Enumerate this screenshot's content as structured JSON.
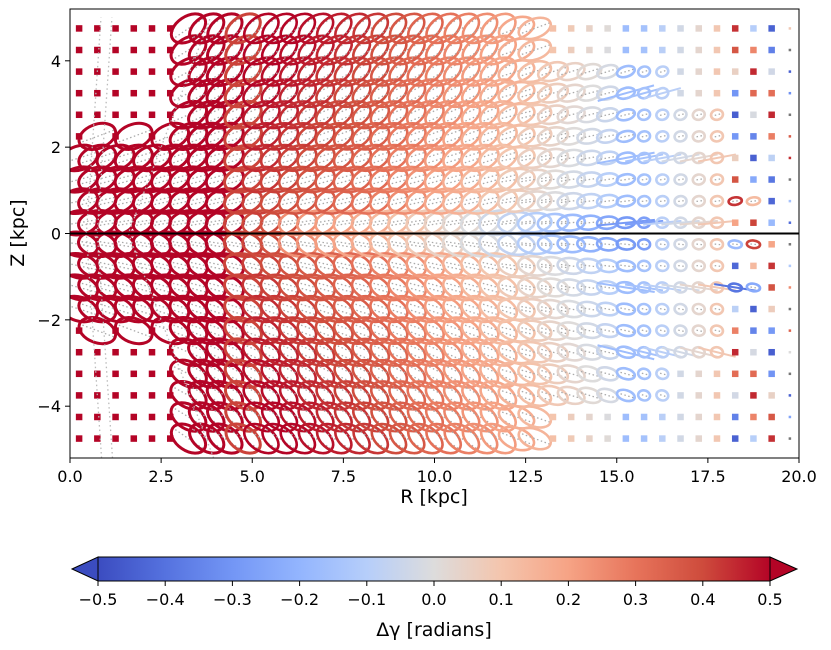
{
  "chart_data": {
    "type": "scatter",
    "marker": "tilt-ellipse",
    "xlabel": "R [kpc]",
    "ylabel": "Z [kpc]",
    "xlim": [
      0.0,
      20.0
    ],
    "ylim": [
      -5.2,
      5.2
    ],
    "xticks": [
      "0.0",
      "2.5",
      "5.0",
      "7.5",
      "10.0",
      "12.5",
      "15.0",
      "17.5",
      "20.0"
    ],
    "xtick_values": [
      0,
      2.5,
      5,
      7.5,
      10,
      12.5,
      15,
      17.5,
      20
    ],
    "yticks": [
      "−4",
      "−2",
      "0",
      "2",
      "4"
    ],
    "ytick_values": [
      -4,
      -2,
      0,
      2,
      4
    ],
    "grid": false,
    "reference_line": {
      "axis": "y",
      "value": 0,
      "color": "#000000"
    },
    "colorbar": {
      "label": "Δγ [radians]",
      "min": -0.5,
      "max": 0.5,
      "ticks": [
        "−0.5",
        "−0.4",
        "−0.3",
        "−0.2",
        "−0.1",
        "0.0",
        "0.1",
        "0.2",
        "0.3",
        "0.4",
        "0.5"
      ],
      "tick_values": [
        -0.5,
        -0.4,
        -0.3,
        -0.2,
        -0.1,
        0.0,
        0.1,
        0.2,
        0.3,
        0.4,
        0.5
      ],
      "extend": "both",
      "colormap": "coolwarm",
      "colors": {
        "low": "#3b4cc0",
        "mid": "#dddddd",
        "high": "#b40426"
      }
    },
    "grid_points": {
      "R": [
        0.25,
        0.75,
        1.25,
        1.75,
        2.25,
        2.75,
        3.25,
        3.75,
        4.25,
        4.75,
        5.25,
        5.75,
        6.25,
        6.75,
        7.25,
        7.75,
        8.25,
        8.75,
        9.25,
        9.75,
        10.25,
        10.75,
        11.25,
        11.75,
        12.25,
        12.75,
        13.25,
        13.75,
        14.25,
        14.75,
        15.25,
        15.75,
        16.25,
        16.75,
        17.25,
        17.75,
        18.25,
        18.75,
        19.25,
        19.75
      ],
      "Z": [
        -4.75,
        -4.25,
        -3.75,
        -3.25,
        -2.75,
        -2.25,
        -1.75,
        -1.25,
        -0.75,
        -0.25,
        0.25,
        0.75,
        1.25,
        1.75,
        2.25,
        2.75,
        3.25,
        3.75,
        4.25,
        4.75
      ]
    }
  }
}
